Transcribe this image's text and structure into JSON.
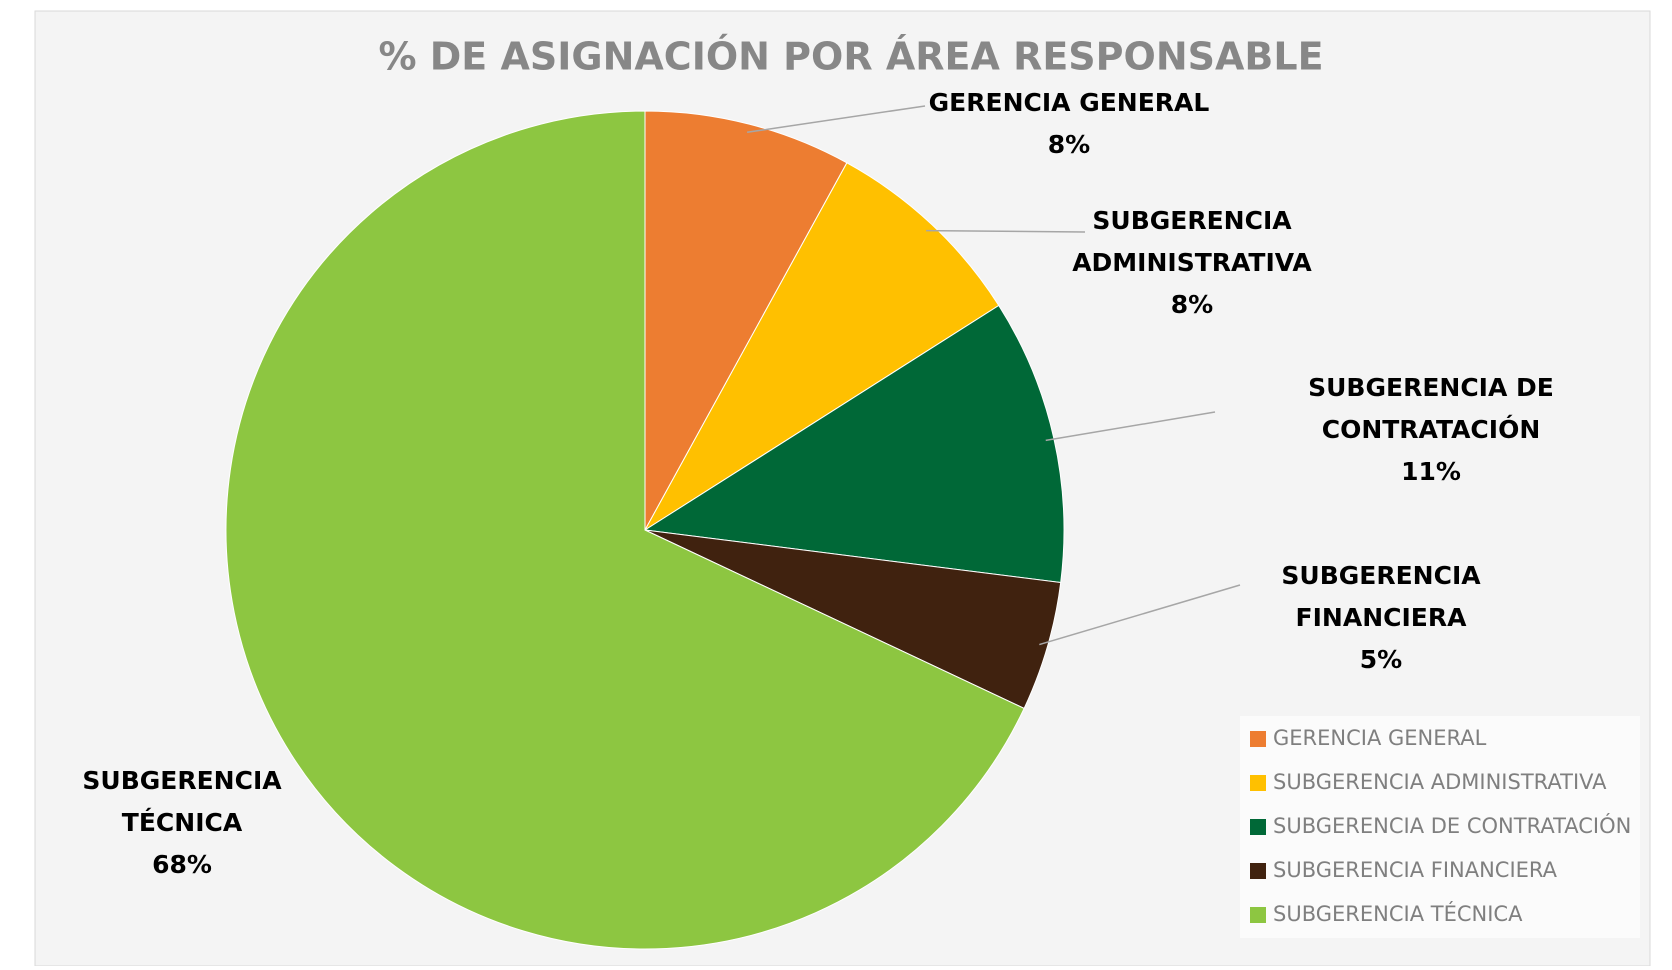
{
  "chart_data": {
    "type": "pie",
    "title": "% DE ASIGNACIÓN POR ÁREA RESPONSABLE",
    "categories": [
      "GERENCIA GENERAL",
      "SUBGERENCIA ADMINISTRATIVA",
      "SUBGERENCIA DE CONTRATACIÓN",
      "SUBGERENCIA FINANCIERA",
      "SUBGERENCIA TÉCNICA"
    ],
    "values": [
      8,
      8,
      11,
      5,
      68
    ],
    "value_labels": [
      "8%",
      "8%",
      "11%",
      "5%",
      "68%"
    ],
    "colors": [
      "#ed7d31",
      "#ffc000",
      "#006837",
      "#40220f",
      "#8dc641"
    ],
    "legend": "right"
  }
}
